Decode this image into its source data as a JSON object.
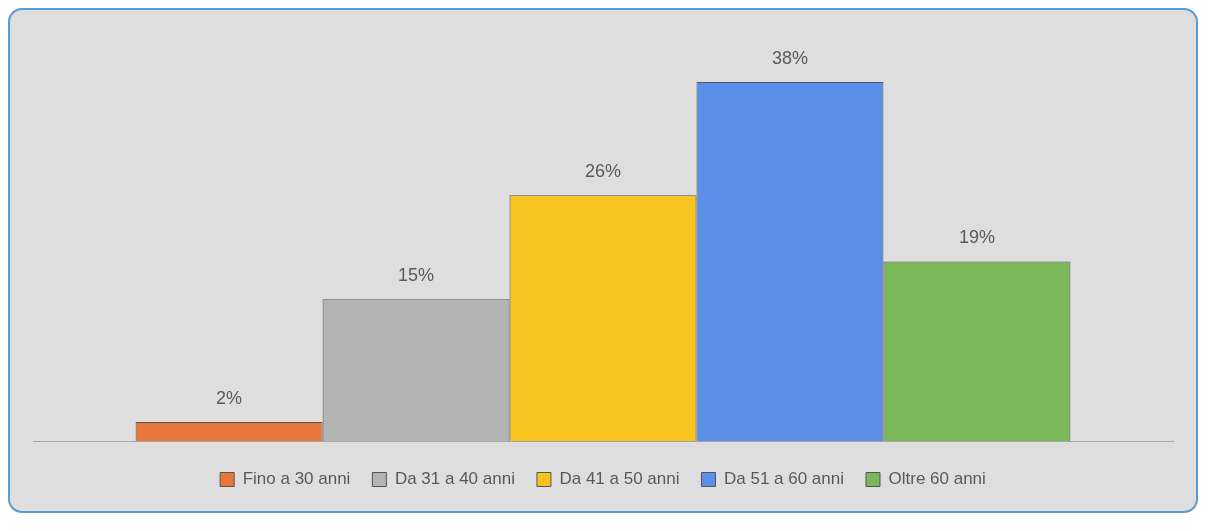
{
  "chart_data": {
    "type": "bar",
    "categories": [
      null
    ],
    "legend": "bottom",
    "series": [
      {
        "name": "Fino a 30 anni",
        "color": "#e8773a",
        "values": [
          2
        ],
        "value_labels": [
          "2%"
        ]
      },
      {
        "name": "Da 31 a 40 anni",
        "color": "#b3b3b3",
        "values": [
          15
        ],
        "value_labels": [
          "15%"
        ]
      },
      {
        "name": "Da 41 a 50 anni",
        "color": "#f7c41f",
        "values": [
          26
        ],
        "value_labels": [
          "26%"
        ]
      },
      {
        "name": "Da 51 a 60 anni",
        "color": "#5b8ee6",
        "values": [
          38
        ],
        "value_labels": [
          "38%"
        ]
      },
      {
        "name": "Oltre 60 anni",
        "color": "#7ab85a",
        "values": [
          19
        ],
        "value_labels": [
          "19%"
        ]
      }
    ]
  }
}
